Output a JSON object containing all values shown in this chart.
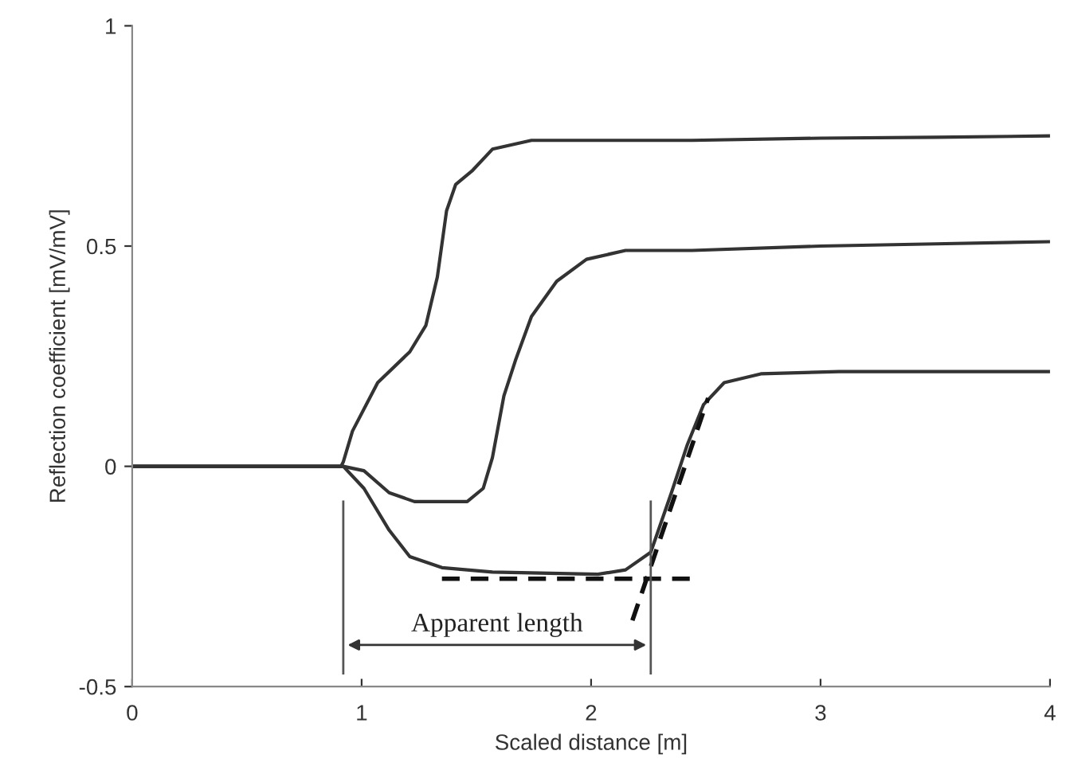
{
  "chart_data": {
    "type": "line",
    "xlabel": "Scaled distance [m]",
    "ylabel": "Reflection coefficient [mV/mV]",
    "xlim": [
      0,
      4
    ],
    "ylim": [
      -0.5,
      1
    ],
    "xticks": [
      0,
      1,
      2,
      3,
      4
    ],
    "yticks": [
      {
        "value": -0.5,
        "label": "-0.5"
      },
      {
        "value": 0,
        "label": "0"
      },
      {
        "value": 0.5,
        "label": "0.5"
      },
      {
        "value": 1,
        "label": "1"
      }
    ],
    "grid": false,
    "legend": false,
    "series": [
      {
        "color": "#333333",
        "line_style": "solid",
        "x": [
          0,
          0.5,
          0.91,
          0.92,
          0.96,
          1.07,
          1.21,
          1.28,
          1.33,
          1.37,
          1.41,
          1.48,
          1.57,
          1.74,
          2.44,
          3.0,
          3.5,
          4.0
        ],
        "values": [
          0,
          0,
          0,
          0.01,
          0.08,
          0.19,
          0.26,
          0.32,
          0.43,
          0.58,
          0.64,
          0.67,
          0.72,
          0.74,
          0.74,
          0.745,
          0.747,
          0.75
        ]
      },
      {
        "color": "#333333",
        "line_style": "solid",
        "x": [
          0,
          0.5,
          0.92,
          1.01,
          1.12,
          1.23,
          1.46,
          1.53,
          1.57,
          1.62,
          1.67,
          1.74,
          1.85,
          1.98,
          2.15,
          2.44,
          3.0,
          3.5,
          4.0
        ],
        "values": [
          0,
          0,
          0,
          -0.01,
          -0.06,
          -0.08,
          -0.08,
          -0.05,
          0.02,
          0.16,
          0.24,
          0.34,
          0.42,
          0.47,
          0.49,
          0.49,
          0.5,
          0.505,
          0.51
        ]
      },
      {
        "color": "#333333",
        "line_style": "solid",
        "x": [
          0,
          0.5,
          0.92,
          1.01,
          1.12,
          1.21,
          1.35,
          1.57,
          2.03,
          2.15,
          2.26,
          2.35,
          2.42,
          2.49,
          2.58,
          2.74,
          3.08,
          4.0
        ],
        "values": [
          0,
          0,
          0,
          -0.05,
          -0.145,
          -0.205,
          -0.23,
          -0.24,
          -0.245,
          -0.235,
          -0.195,
          -0.06,
          0.05,
          0.14,
          0.19,
          0.21,
          0.215,
          0.215
        ]
      },
      {
        "color": "#111111",
        "line_style": "dashed",
        "x": [
          1.35,
          2.43
        ],
        "values": [
          -0.255,
          -0.255
        ]
      },
      {
        "color": "#111111",
        "line_style": "dashed",
        "x": [
          2.18,
          2.51
        ],
        "values": [
          -0.35,
          0.155
        ]
      }
    ],
    "ref_lines": [
      {
        "axis": "x",
        "value": 0.92,
        "color": "#555555"
      },
      {
        "axis": "x",
        "value": 2.26,
        "color": "#555555"
      }
    ],
    "annotations": [
      "Apparent length"
    ]
  }
}
